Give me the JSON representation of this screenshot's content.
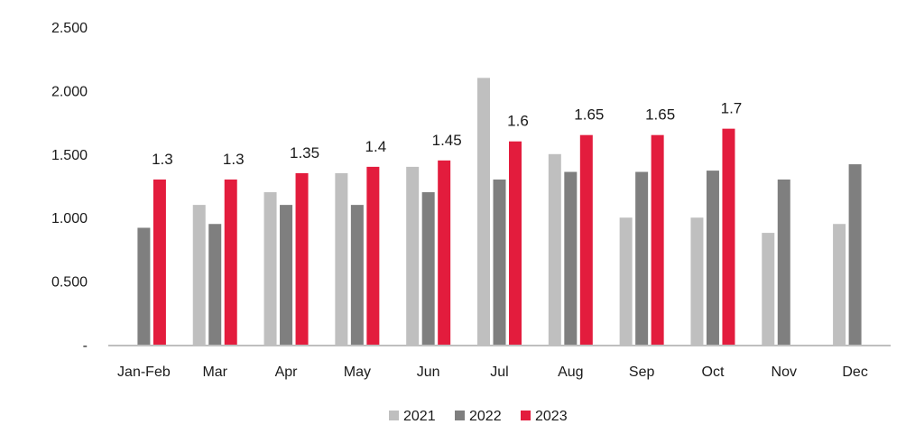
{
  "chart_data": {
    "type": "bar",
    "categories": [
      "Jan-Feb",
      "Mar",
      "Apr",
      "May",
      "Jun",
      "Jul",
      "Aug",
      "Sep",
      "Oct",
      "Nov",
      "Dec"
    ],
    "series": [
      {
        "name": "2021",
        "color": "#bfbfbf",
        "values": [
          null,
          1.1,
          1.2,
          1.35,
          1.4,
          2.1,
          1.5,
          1.0,
          1.0,
          0.88,
          0.95
        ]
      },
      {
        "name": "2022",
        "color": "#7f7f7f",
        "values": [
          0.92,
          0.95,
          1.1,
          1.1,
          1.2,
          1.3,
          1.36,
          1.36,
          1.37,
          1.3,
          1.42
        ]
      },
      {
        "name": "2023",
        "color": "#e31c3d",
        "values": [
          1.3,
          1.3,
          1.35,
          1.4,
          1.45,
          1.6,
          1.65,
          1.65,
          1.7,
          null,
          null
        ]
      }
    ],
    "data_labels": {
      "series": "2023",
      "labels": [
        "1.3",
        "1.3",
        "1.35",
        "1.4",
        "1.45",
        "1.6",
        "1.65",
        "1.65",
        "1.7",
        "",
        ""
      ]
    },
    "ylim": [
      0,
      2.5
    ],
    "y_ticks": [
      {
        "value": 0,
        "label": "-"
      },
      {
        "value": 0.5,
        "label": "0.500"
      },
      {
        "value": 1.0,
        "label": "1.000"
      },
      {
        "value": 1.5,
        "label": "1.500"
      },
      {
        "value": 2.0,
        "label": "2.000"
      },
      {
        "value": 2.5,
        "label": "2.500"
      }
    ],
    "title": "",
    "xlabel": "",
    "ylabel": "",
    "grid": false,
    "legend_position": "bottom-center"
  }
}
